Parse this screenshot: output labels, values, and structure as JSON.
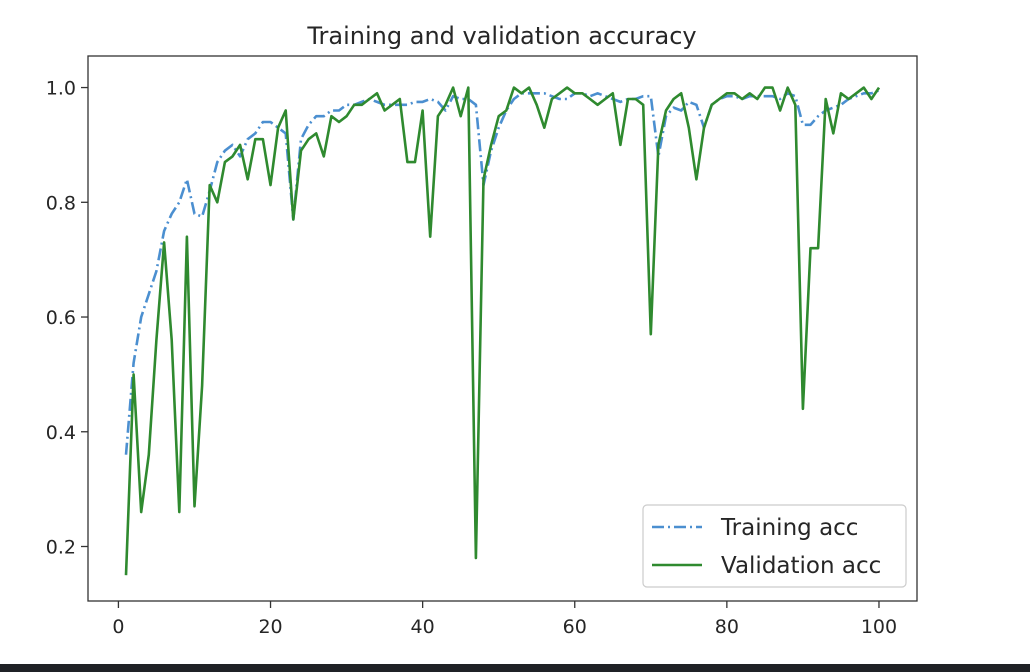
{
  "chart_data": {
    "type": "line",
    "title": "Training and validation accuracy",
    "xlabel": "",
    "ylabel": "",
    "xlim": [
      -4,
      105
    ],
    "ylim": [
      0.105,
      1.055
    ],
    "xticks": [
      0,
      20,
      40,
      60,
      80,
      100
    ],
    "xtick_labels": [
      "0",
      "20",
      "40",
      "60",
      "80",
      "100"
    ],
    "yticks": [
      0.2,
      0.4,
      0.6,
      0.8,
      1.0
    ],
    "ytick_labels": [
      "0.2",
      "0.4",
      "0.6",
      "0.8",
      "1.0"
    ],
    "grid": false,
    "legend_position": "lower-right",
    "x": [
      1,
      2,
      3,
      4,
      5,
      6,
      7,
      8,
      9,
      10,
      11,
      12,
      13,
      14,
      15,
      16,
      17,
      18,
      19,
      20,
      21,
      22,
      23,
      24,
      25,
      26,
      27,
      28,
      29,
      30,
      31,
      32,
      33,
      34,
      35,
      36,
      37,
      38,
      39,
      40,
      41,
      42,
      43,
      44,
      45,
      46,
      47,
      48,
      49,
      50,
      51,
      52,
      53,
      54,
      55,
      56,
      57,
      58,
      59,
      60,
      61,
      62,
      63,
      64,
      65,
      66,
      67,
      68,
      69,
      70,
      71,
      72,
      73,
      74,
      75,
      76,
      77,
      78,
      79,
      80,
      81,
      82,
      83,
      84,
      85,
      86,
      87,
      88,
      89,
      90,
      91,
      92,
      93,
      94,
      95,
      96,
      97,
      98,
      99,
      100
    ],
    "series": [
      {
        "name": "Training acc",
        "color": "#4b8fd0",
        "style": "dashdot",
        "values": [
          0.36,
          0.52,
          0.6,
          0.64,
          0.68,
          0.75,
          0.78,
          0.8,
          0.84,
          0.78,
          0.775,
          0.82,
          0.87,
          0.89,
          0.9,
          0.88,
          0.91,
          0.92,
          0.94,
          0.94,
          0.93,
          0.92,
          0.77,
          0.91,
          0.935,
          0.95,
          0.95,
          0.96,
          0.96,
          0.97,
          0.97,
          0.975,
          0.98,
          0.975,
          0.97,
          0.97,
          0.97,
          0.97,
          0.975,
          0.975,
          0.98,
          0.975,
          0.96,
          0.985,
          0.98,
          0.98,
          0.97,
          0.83,
          0.89,
          0.93,
          0.96,
          0.98,
          0.99,
          0.99,
          0.99,
          0.99,
          0.985,
          0.98,
          0.98,
          0.99,
          0.99,
          0.985,
          0.99,
          0.985,
          0.98,
          0.975,
          0.98,
          0.98,
          0.985,
          0.985,
          0.88,
          0.95,
          0.965,
          0.96,
          0.975,
          0.97,
          0.93,
          0.97,
          0.98,
          0.985,
          0.985,
          0.98,
          0.985,
          0.985,
          0.985,
          0.985,
          0.98,
          0.99,
          0.985,
          0.935,
          0.935,
          0.95,
          0.96,
          0.965,
          0.97,
          0.98,
          0.985,
          0.99,
          0.99,
          0.995
        ]
      },
      {
        "name": "Validation acc",
        "color": "#2f8a2f",
        "style": "solid",
        "values": [
          0.15,
          0.5,
          0.26,
          0.36,
          0.56,
          0.73,
          0.56,
          0.26,
          0.74,
          0.27,
          0.48,
          0.83,
          0.8,
          0.87,
          0.88,
          0.9,
          0.84,
          0.91,
          0.91,
          0.83,
          0.93,
          0.96,
          0.77,
          0.89,
          0.91,
          0.92,
          0.88,
          0.95,
          0.94,
          0.95,
          0.97,
          0.97,
          0.98,
          0.99,
          0.96,
          0.97,
          0.98,
          0.87,
          0.87,
          0.96,
          0.74,
          0.95,
          0.97,
          1.0,
          0.95,
          1.0,
          0.18,
          0.84,
          0.9,
          0.95,
          0.96,
          1.0,
          0.99,
          1.0,
          0.97,
          0.93,
          0.98,
          0.99,
          1.0,
          0.99,
          0.99,
          0.98,
          0.97,
          0.98,
          0.99,
          0.9,
          0.98,
          0.98,
          0.97,
          0.57,
          0.9,
          0.96,
          0.98,
          0.99,
          0.93,
          0.84,
          0.93,
          0.97,
          0.98,
          0.99,
          0.99,
          0.98,
          0.99,
          0.98,
          1.0,
          1.0,
          0.96,
          1.0,
          0.97,
          0.44,
          0.72,
          0.72,
          0.98,
          0.92,
          0.99,
          0.98,
          0.99,
          1.0,
          0.98,
          1.0
        ]
      }
    ]
  }
}
